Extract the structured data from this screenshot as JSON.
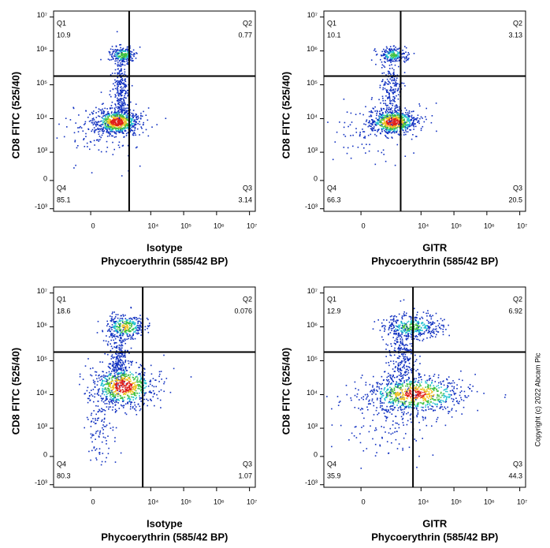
{
  "chart_data": [
    {
      "type": "flow-density",
      "x_label": [
        "Isotype",
        "Phycoerythrin (585/42 BP)"
      ],
      "y_label": "CD8 FITC (525/40)",
      "quadrants": [
        {
          "name": "Q1",
          "value": 10.9
        },
        {
          "name": "Q2",
          "value": 0.77
        },
        {
          "name": "Q3",
          "value": 3.14
        },
        {
          "name": "Q4",
          "value": 85.1
        }
      ],
      "gate": {
        "x": 2200,
        "y": 180000
      },
      "xlim": [
        -2000,
        15000000
      ],
      "ylim": [
        -1200,
        15000000
      ],
      "xticks": [
        0,
        {
          "value": 10000,
          "label": "10⁴"
        },
        {
          "value": 100000,
          "label": "10⁵"
        },
        {
          "value": 1000000,
          "label": "10⁶"
        },
        {
          "value": 10000000,
          "label": "10⁷"
        }
      ],
      "yticks": [
        {
          "value": -1000,
          "label": "-10³"
        },
        0,
        {
          "value": 1000,
          "label": "10³"
        },
        {
          "value": 10000,
          "label": "10⁴"
        },
        {
          "value": 100000,
          "label": "10⁵"
        },
        {
          "value": 1000000,
          "label": "10⁶"
        },
        {
          "value": 10000000,
          "label": "10⁷"
        }
      ]
    },
    {
      "type": "flow-density",
      "x_label": [
        "GITR",
        "Phycoerythrin (585/42 BP)"
      ],
      "y_label": "CD8 FITC (525/40)",
      "quadrants": [
        {
          "name": "Q1",
          "value": 10.1
        },
        {
          "name": "Q2",
          "value": 3.13
        },
        {
          "name": "Q3",
          "value": 20.5
        },
        {
          "name": "Q4",
          "value": 66.3
        }
      ],
      "gate": {
        "x": 2400,
        "y": 180000
      },
      "xlim": [
        -2000,
        15000000
      ],
      "ylim": [
        -1200,
        15000000
      ],
      "xticks": [
        0,
        {
          "value": 10000,
          "label": "10⁴"
        },
        {
          "value": 100000,
          "label": "10⁵"
        },
        {
          "value": 1000000,
          "label": "10⁶"
        },
        {
          "value": 10000000,
          "label": "10⁷"
        }
      ],
      "yticks": [
        {
          "value": -1000,
          "label": "-10³"
        },
        0,
        {
          "value": 1000,
          "label": "10³"
        },
        {
          "value": 10000,
          "label": "10⁴"
        },
        {
          "value": 100000,
          "label": "10⁵"
        },
        {
          "value": 1000000,
          "label": "10⁶"
        },
        {
          "value": 10000000,
          "label": "10⁷"
        }
      ]
    },
    {
      "type": "flow-density",
      "x_label": [
        "Isotype",
        "Phycoerythrin (585/42 BP)"
      ],
      "y_label": "CD8 FITC (525/40)",
      "quadrants": [
        {
          "name": "Q1",
          "value": 18.6
        },
        {
          "name": "Q2",
          "value": 0.076
        },
        {
          "name": "Q3",
          "value": 1.07
        },
        {
          "name": "Q4",
          "value": 80.3
        }
      ],
      "gate": {
        "x": 5700,
        "y": 180000
      },
      "xlim": [
        -2000,
        15000000
      ],
      "ylim": [
        -1200,
        15000000
      ],
      "xticks": [
        0,
        {
          "value": 10000,
          "label": "10⁴"
        },
        {
          "value": 100000,
          "label": "10⁵"
        },
        {
          "value": 1000000,
          "label": "10⁶"
        },
        {
          "value": 10000000,
          "label": "10⁷"
        }
      ],
      "yticks": [
        {
          "value": -1000,
          "label": "-10³"
        },
        0,
        {
          "value": 1000,
          "label": "10³"
        },
        {
          "value": 10000,
          "label": "10⁴"
        },
        {
          "value": 100000,
          "label": "10⁵"
        },
        {
          "value": 1000000,
          "label": "10⁶"
        },
        {
          "value": 10000000,
          "label": "10⁷"
        }
      ]
    },
    {
      "type": "flow-density",
      "x_label": [
        "GITR",
        "Phycoerythrin (585/42 BP)"
      ],
      "y_label": "CD8 FITC (525/40)",
      "quadrants": [
        {
          "name": "Q1",
          "value": 12.9
        },
        {
          "name": "Q2",
          "value": 6.92
        },
        {
          "name": "Q3",
          "value": 44.3
        },
        {
          "name": "Q4",
          "value": 35.9
        }
      ],
      "gate": {
        "x": 5700,
        "y": 180000
      },
      "xlim": [
        -2000,
        15000000
      ],
      "ylim": [
        -1200,
        15000000
      ],
      "xticks": [
        0,
        {
          "value": 10000,
          "label": "10⁴"
        },
        {
          "value": 100000,
          "label": "10⁵"
        },
        {
          "value": 1000000,
          "label": "10⁶"
        },
        {
          "value": 10000000,
          "label": "10⁷"
        }
      ],
      "yticks": [
        {
          "value": -1000,
          "label": "-10³"
        },
        0,
        {
          "value": 1000,
          "label": "10³"
        },
        {
          "value": 10000,
          "label": "10⁴"
        },
        {
          "value": 100000,
          "label": "10⁵"
        },
        {
          "value": 1000000,
          "label": "10⁶"
        },
        {
          "value": 10000000,
          "label": "10⁷"
        }
      ]
    }
  ],
  "copyright": "Copyright (c) 2022 Abcam Plc"
}
